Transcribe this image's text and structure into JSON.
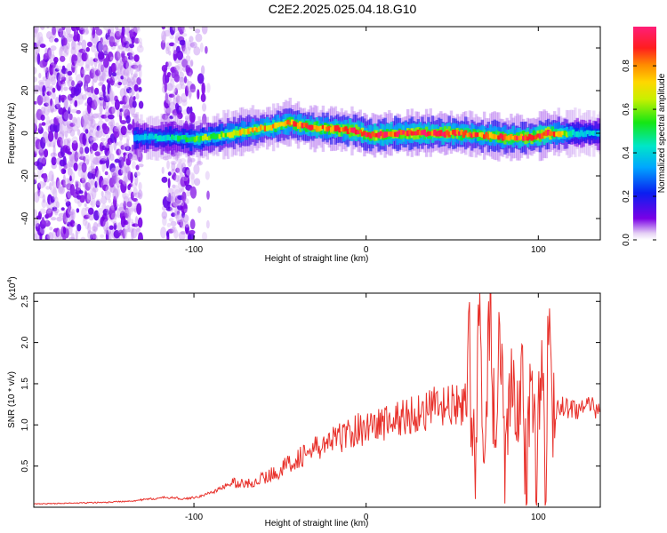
{
  "figure_title": "C2E2.2025.025.04.18.G10",
  "colors": {
    "snr_line": "#e8302a",
    "axis": "#000000",
    "background": "#ffffff"
  },
  "colorbar": {
    "label": "Normalized spectral amplitude",
    "ticks": [
      "0.0",
      "0.2",
      "0.4",
      "0.6",
      "0.8"
    ],
    "tick_values": [
      0.0,
      0.2,
      0.4,
      0.6,
      0.8
    ],
    "range": [
      0,
      0.98
    ],
    "colormap": "rainbow (purple-blue-cyan-green-yellow-orange-red-magenta)"
  },
  "chart_data": [
    {
      "type": "heatmap",
      "xlabel": "Height of straight line (km)",
      "ylabel": "Frequency (Hz)",
      "xlim": [
        -193,
        136
      ],
      "ylim": [
        -50,
        50
      ],
      "x_ticks": [
        -100,
        0,
        100
      ],
      "x_tick_labels": [
        "-100",
        "0",
        "100"
      ],
      "y_ticks": [
        -40,
        -20,
        0,
        20,
        40
      ],
      "y_tick_labels": [
        "-40",
        "-20",
        "0",
        "20",
        "40"
      ],
      "description_of_features": "Broad scattered purple noise for x < -100 km (two gaps around -130 to -120 and beyond -100); a narrow spectral band near 0 Hz from about -135 km to 136 km, rising to about +5 Hz near -45 km and peaking (red/magenta) along the band.",
      "band_track": [
        {
          "x": -135,
          "freq": -2,
          "amp": 0.35
        },
        {
          "x": -110,
          "freq": -2,
          "amp": 0.45
        },
        {
          "x": -100,
          "freq": -3,
          "amp": 0.55
        },
        {
          "x": -85,
          "freq": -1,
          "amp": 0.6
        },
        {
          "x": -70,
          "freq": 1,
          "amp": 0.7
        },
        {
          "x": -55,
          "freq": 3,
          "amp": 0.75
        },
        {
          "x": -45,
          "freq": 5,
          "amp": 0.8
        },
        {
          "x": -35,
          "freq": 3,
          "amp": 0.85
        },
        {
          "x": -20,
          "freq": 2,
          "amp": 0.85
        },
        {
          "x": -5,
          "freq": 1,
          "amp": 0.9
        },
        {
          "x": 0,
          "freq": -1,
          "amp": 0.9
        },
        {
          "x": 20,
          "freq": 0,
          "amp": 0.92
        },
        {
          "x": 40,
          "freq": 0,
          "amp": 0.9
        },
        {
          "x": 55,
          "freq": 0,
          "amp": 0.85
        },
        {
          "x": 65,
          "freq": -1,
          "amp": 0.8
        },
        {
          "x": 80,
          "freq": -2,
          "amp": 0.85
        },
        {
          "x": 95,
          "freq": -2,
          "amp": 0.9
        },
        {
          "x": 105,
          "freq": 0,
          "amp": 0.95
        },
        {
          "x": 120,
          "freq": 0,
          "amp": 0.4
        },
        {
          "x": 136,
          "freq": 0,
          "amp": 0.35
        }
      ]
    },
    {
      "type": "line",
      "xlabel": "Height of straight line (km)",
      "ylabel": "SNR (10 * v/v)",
      "y_multiplier_label": "(x10",
      "y_multiplier_exponent": "4",
      "xlim": [
        -193,
        136
      ],
      "ylim": [
        0,
        2.6
      ],
      "x_ticks": [
        -100,
        0,
        100
      ],
      "x_tick_labels": [
        "-100",
        "0",
        "100"
      ],
      "y_ticks": [
        0.5,
        1.0,
        1.5,
        2.0,
        2.5
      ],
      "y_tick_labels": [
        "0.5",
        "1.0",
        "1.5",
        "2.0",
        "2.5"
      ],
      "series": [
        {
          "x": [
            -193,
            -170,
            -150,
            -135,
            -125,
            -115,
            -105,
            -95,
            -85,
            -78,
            -70,
            -60,
            -50,
            -40,
            -30,
            -20,
            -10,
            0,
            10,
            20,
            30,
            40,
            50,
            58,
            60,
            63,
            66,
            69,
            72,
            75,
            78,
            81,
            84,
            87,
            90,
            93,
            96,
            99,
            102,
            104,
            106,
            108,
            110,
            115,
            125,
            136
          ],
          "y": [
            0.04,
            0.05,
            0.06,
            0.08,
            0.1,
            0.12,
            0.1,
            0.14,
            0.22,
            0.3,
            0.28,
            0.35,
            0.45,
            0.6,
            0.7,
            0.8,
            0.9,
            0.98,
            1.02,
            1.08,
            1.15,
            1.2,
            1.22,
            1.25,
            1.8,
            0.5,
            2.3,
            0.4,
            2.6,
            0.6,
            2.1,
            0.3,
            1.9,
            0.5,
            1.7,
            0.2,
            2.0,
            0.4,
            2.2,
            0.1,
            2.3,
            0.8,
            1.22,
            1.21,
            1.2,
            1.19
          ]
        }
      ]
    }
  ]
}
